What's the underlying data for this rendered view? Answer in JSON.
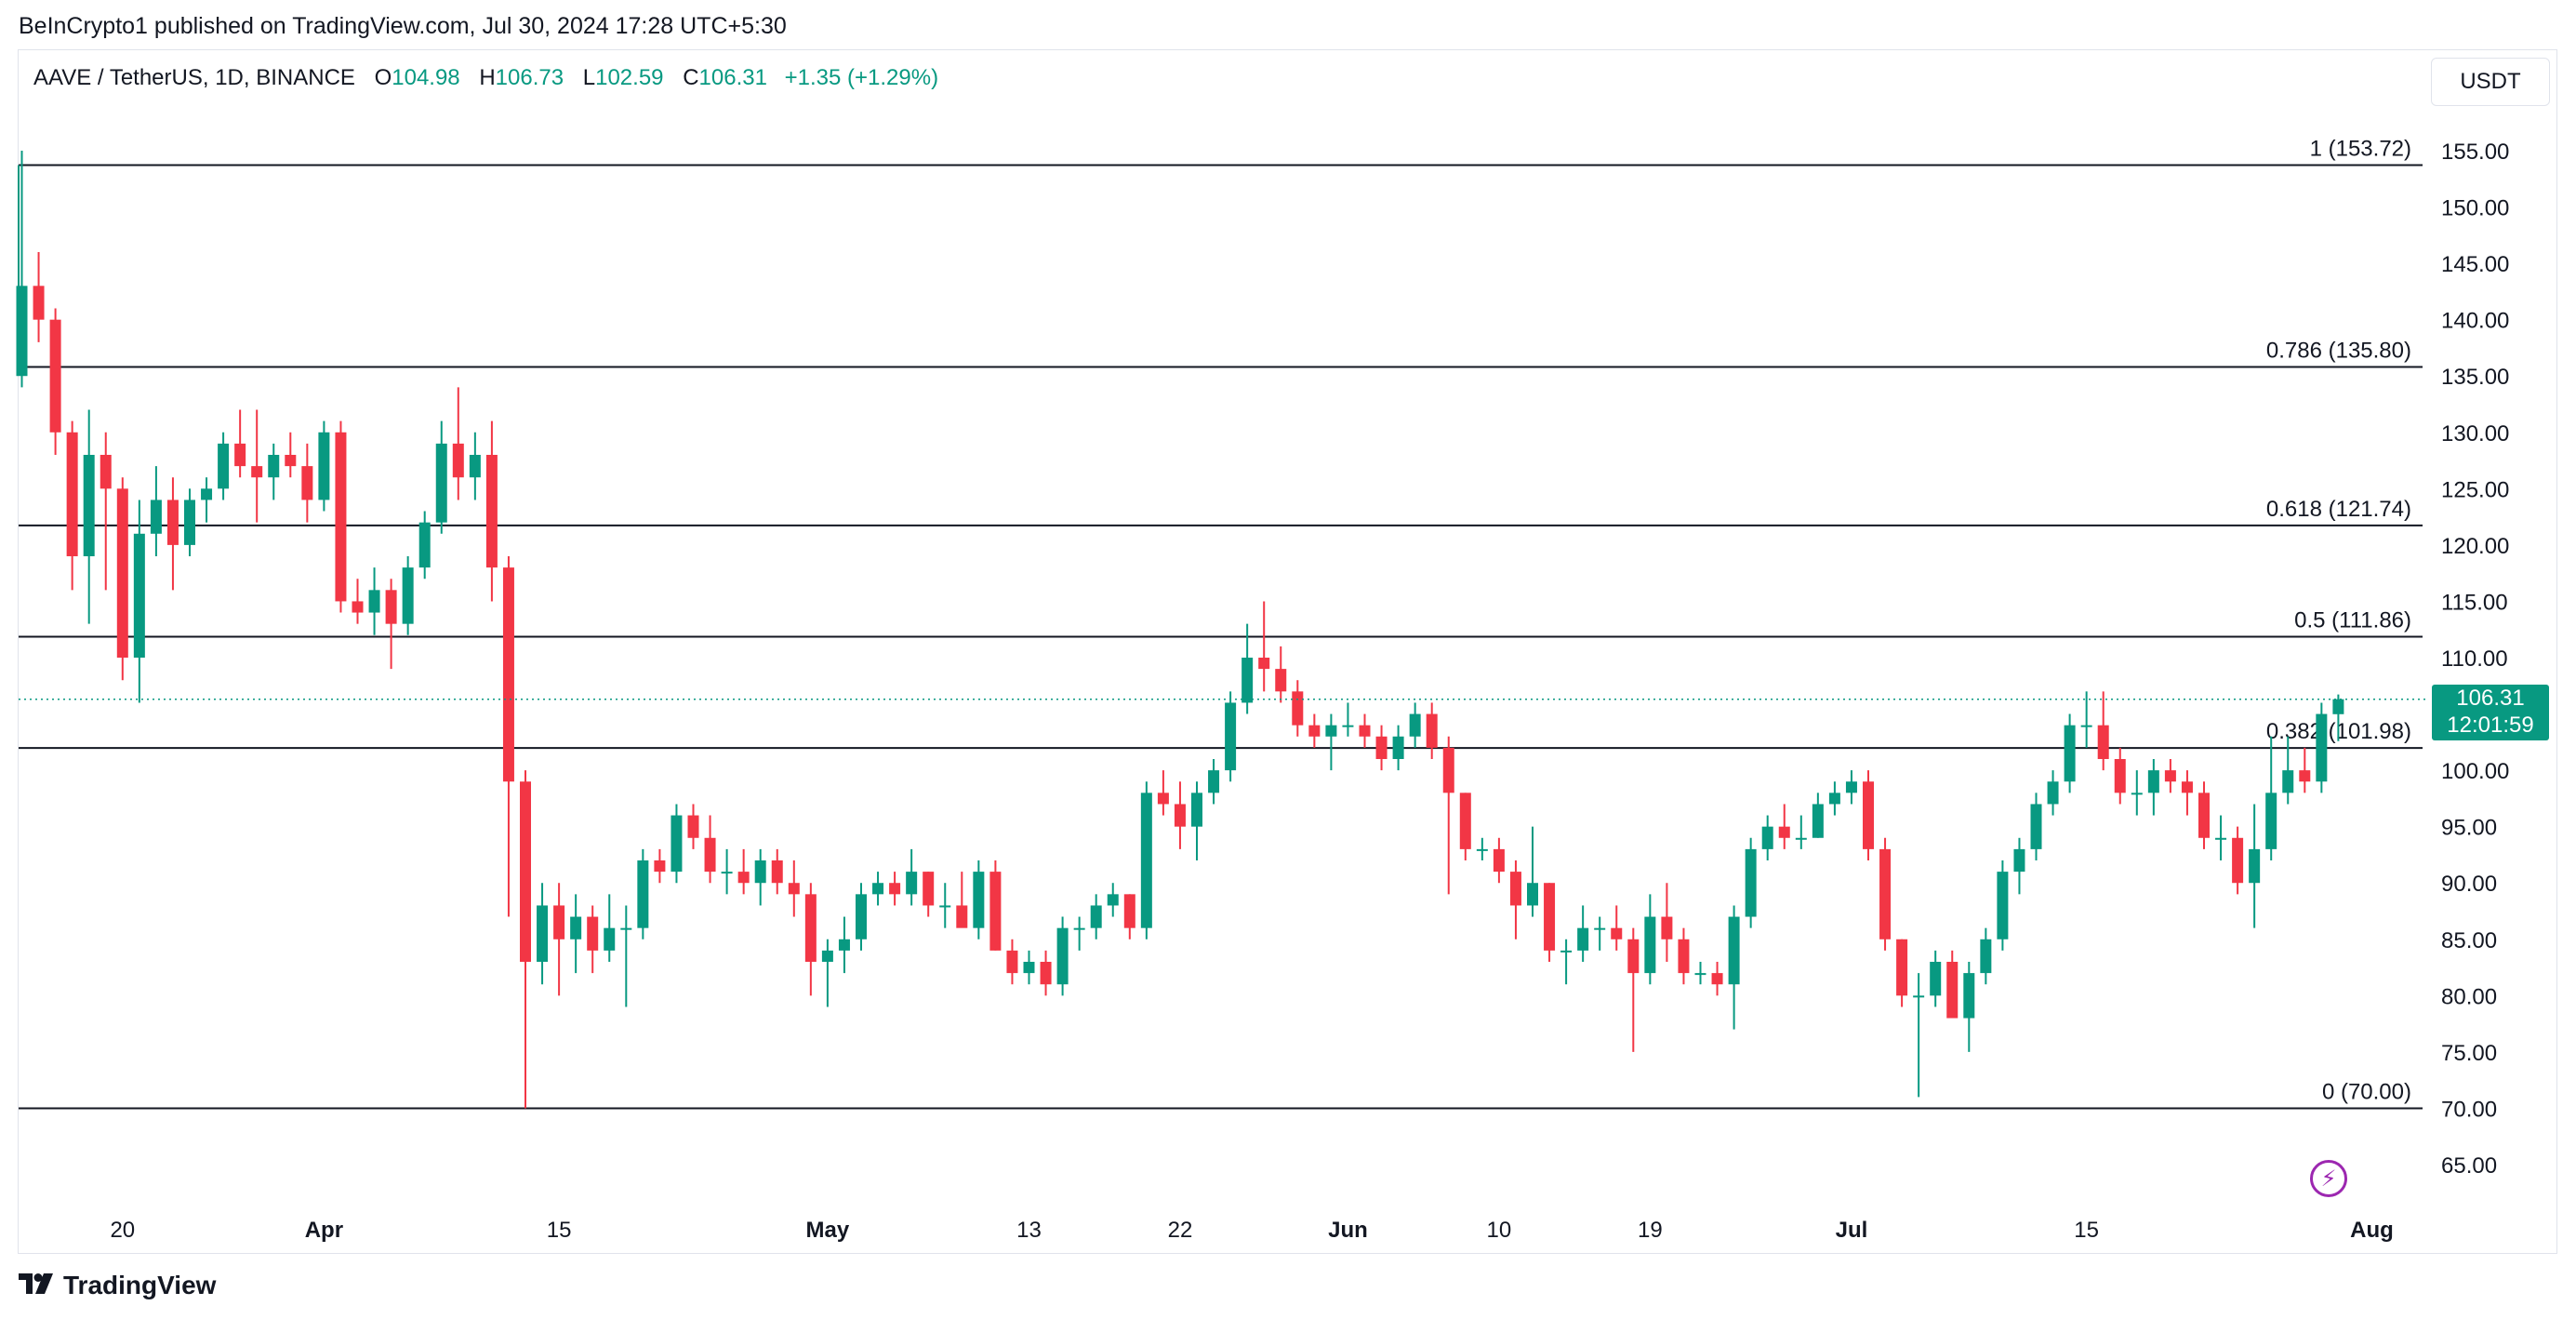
{
  "publisher_line": "BeInCrypto1 published on TradingView.com, Jul 30, 2024 17:28 UTC+5:30",
  "legend": {
    "symbol": "AAVE / TetherUS, 1D, BINANCE",
    "open_label": "O",
    "open": "104.98",
    "high_label": "H",
    "high": "106.73",
    "low_label": "L",
    "low": "102.59",
    "close_label": "C",
    "close": "106.31",
    "change": "+1.35 (+1.29%)"
  },
  "currency_button": "USDT",
  "price_tag": {
    "price": "106.31",
    "countdown": "12:01:59"
  },
  "brand": "TradingView",
  "colors": {
    "up": "#089981",
    "down": "#f23645",
    "fib_line": "#131722",
    "grid_text": "#131722",
    "bolt": "#9c27b0"
  },
  "icons": {
    "alert": "lightning-bolt-icon",
    "brand": "tradingview-logo-icon"
  },
  "chart_data": {
    "type": "candlestick",
    "timeframe": "1D",
    "ylim": [
      62,
      165
    ],
    "y_ticks": [
      65,
      70,
      75,
      80,
      85,
      90,
      95,
      100,
      105,
      110,
      115,
      120,
      125,
      130,
      135,
      140,
      145,
      150,
      155
    ],
    "y_tick_labels": [
      "65.00",
      "70.00",
      "75.00",
      "80.00",
      "85.00",
      "90.00",
      "95.00",
      "100.00",
      "105.00",
      "110.00",
      "115.00",
      "120.00",
      "125.00",
      "130.00",
      "135.00",
      "140.00",
      "145.00",
      "150.00",
      "155.00"
    ],
    "x_start": "2024-03-14",
    "x_end": "2024-08-01",
    "x_ticks": [
      {
        "date": "2024-03-20",
        "label": "20",
        "bold": false
      },
      {
        "date": "2024-04-01",
        "label": "Apr",
        "bold": true
      },
      {
        "date": "2024-04-15",
        "label": "15",
        "bold": false
      },
      {
        "date": "2024-05-01",
        "label": "May",
        "bold": true
      },
      {
        "date": "2024-05-13",
        "label": "13",
        "bold": false
      },
      {
        "date": "2024-05-22",
        "label": "22",
        "bold": false
      },
      {
        "date": "2024-06-01",
        "label": "Jun",
        "bold": true
      },
      {
        "date": "2024-06-10",
        "label": "10",
        "bold": false
      },
      {
        "date": "2024-06-19",
        "label": "19",
        "bold": false
      },
      {
        "date": "2024-07-01",
        "label": "Jul",
        "bold": true
      },
      {
        "date": "2024-07-15",
        "label": "15",
        "bold": false
      },
      {
        "date": "2024-08-01",
        "label": "Aug",
        "bold": true
      }
    ],
    "fib_levels": [
      {
        "ratio": "1",
        "value": 153.72,
        "label": "1 (153.72)"
      },
      {
        "ratio": "0.786",
        "value": 135.8,
        "label": "0.786 (135.80)"
      },
      {
        "ratio": "0.618",
        "value": 121.74,
        "label": "0.618 (121.74)"
      },
      {
        "ratio": "0.5",
        "value": 111.86,
        "label": "0.5 (111.86)"
      },
      {
        "ratio": "0.382",
        "value": 101.98,
        "label": "0.382 (101.98)"
      },
      {
        "ratio": "0",
        "value": 70.0,
        "label": "0 (70.00)"
      }
    ],
    "last_price": 106.31,
    "candles": [
      {
        "d": "2024-03-14",
        "o": 135,
        "h": 155,
        "l": 134,
        "c": 143
      },
      {
        "d": "2024-03-15",
        "o": 143,
        "h": 146,
        "l": 138,
        "c": 140
      },
      {
        "d": "2024-03-16",
        "o": 140,
        "h": 141,
        "l": 128,
        "c": 130
      },
      {
        "d": "2024-03-17",
        "o": 130,
        "h": 131,
        "l": 116,
        "c": 119
      },
      {
        "d": "2024-03-18",
        "o": 119,
        "h": 132,
        "l": 113,
        "c": 128
      },
      {
        "d": "2024-03-19",
        "o": 128,
        "h": 130,
        "l": 116,
        "c": 125
      },
      {
        "d": "2024-03-20",
        "o": 125,
        "h": 126,
        "l": 108,
        "c": 110
      },
      {
        "d": "2024-03-21",
        "o": 110,
        "h": 124,
        "l": 106,
        "c": 121
      },
      {
        "d": "2024-03-22",
        "o": 121,
        "h": 127,
        "l": 119,
        "c": 124
      },
      {
        "d": "2024-03-23",
        "o": 124,
        "h": 126,
        "l": 116,
        "c": 120
      },
      {
        "d": "2024-03-24",
        "o": 120,
        "h": 125,
        "l": 119,
        "c": 124
      },
      {
        "d": "2024-03-25",
        "o": 124,
        "h": 126,
        "l": 122,
        "c": 125
      },
      {
        "d": "2024-03-26",
        "o": 125,
        "h": 130,
        "l": 124,
        "c": 129
      },
      {
        "d": "2024-03-27",
        "o": 129,
        "h": 132,
        "l": 126,
        "c": 127
      },
      {
        "d": "2024-03-28",
        "o": 127,
        "h": 132,
        "l": 122,
        "c": 126
      },
      {
        "d": "2024-03-29",
        "o": 126,
        "h": 129,
        "l": 124,
        "c": 128
      },
      {
        "d": "2024-03-30",
        "o": 128,
        "h": 130,
        "l": 126,
        "c": 127
      },
      {
        "d": "2024-03-31",
        "o": 127,
        "h": 129,
        "l": 122,
        "c": 124
      },
      {
        "d": "2024-04-01",
        "o": 124,
        "h": 131,
        "l": 123,
        "c": 130
      },
      {
        "d": "2024-04-02",
        "o": 130,
        "h": 131,
        "l": 114,
        "c": 115
      },
      {
        "d": "2024-04-03",
        "o": 115,
        "h": 117,
        "l": 113,
        "c": 114
      },
      {
        "d": "2024-04-04",
        "o": 114,
        "h": 118,
        "l": 112,
        "c": 116
      },
      {
        "d": "2024-04-05",
        "o": 116,
        "h": 117,
        "l": 109,
        "c": 113
      },
      {
        "d": "2024-04-06",
        "o": 113,
        "h": 119,
        "l": 112,
        "c": 118
      },
      {
        "d": "2024-04-07",
        "o": 118,
        "h": 123,
        "l": 117,
        "c": 122
      },
      {
        "d": "2024-04-08",
        "o": 122,
        "h": 131,
        "l": 121,
        "c": 129
      },
      {
        "d": "2024-04-09",
        "o": 129,
        "h": 134,
        "l": 124,
        "c": 126
      },
      {
        "d": "2024-04-10",
        "o": 126,
        "h": 130,
        "l": 124,
        "c": 128
      },
      {
        "d": "2024-04-11",
        "o": 128,
        "h": 131,
        "l": 115,
        "c": 118
      },
      {
        "d": "2024-04-12",
        "o": 118,
        "h": 119,
        "l": 87,
        "c": 99
      },
      {
        "d": "2024-04-13",
        "o": 99,
        "h": 100,
        "l": 70,
        "c": 83
      },
      {
        "d": "2024-04-14",
        "o": 83,
        "h": 90,
        "l": 81,
        "c": 88
      },
      {
        "d": "2024-04-15",
        "o": 88,
        "h": 90,
        "l": 80,
        "c": 85
      },
      {
        "d": "2024-04-16",
        "o": 85,
        "h": 89,
        "l": 82,
        "c": 87
      },
      {
        "d": "2024-04-17",
        "o": 87,
        "h": 88,
        "l": 82,
        "c": 84
      },
      {
        "d": "2024-04-18",
        "o": 84,
        "h": 89,
        "l": 83,
        "c": 86
      },
      {
        "d": "2024-04-19",
        "o": 86,
        "h": 88,
        "l": 79,
        "c": 86
      },
      {
        "d": "2024-04-20",
        "o": 86,
        "h": 93,
        "l": 85,
        "c": 92
      },
      {
        "d": "2024-04-21",
        "o": 92,
        "h": 93,
        "l": 90,
        "c": 91
      },
      {
        "d": "2024-04-22",
        "o": 91,
        "h": 97,
        "l": 90,
        "c": 96
      },
      {
        "d": "2024-04-23",
        "o": 96,
        "h": 97,
        "l": 93,
        "c": 94
      },
      {
        "d": "2024-04-24",
        "o": 94,
        "h": 96,
        "l": 90,
        "c": 91
      },
      {
        "d": "2024-04-25",
        "o": 91,
        "h": 93,
        "l": 89,
        "c": 91
      },
      {
        "d": "2024-04-26",
        "o": 91,
        "h": 93,
        "l": 89,
        "c": 90
      },
      {
        "d": "2024-04-27",
        "o": 90,
        "h": 93,
        "l": 88,
        "c": 92
      },
      {
        "d": "2024-04-28",
        "o": 92,
        "h": 93,
        "l": 89,
        "c": 90
      },
      {
        "d": "2024-04-29",
        "o": 90,
        "h": 92,
        "l": 87,
        "c": 89
      },
      {
        "d": "2024-04-30",
        "o": 89,
        "h": 90,
        "l": 80,
        "c": 83
      },
      {
        "d": "2024-05-01",
        "o": 83,
        "h": 85,
        "l": 79,
        "c": 84
      },
      {
        "d": "2024-05-02",
        "o": 84,
        "h": 87,
        "l": 82,
        "c": 85
      },
      {
        "d": "2024-05-03",
        "o": 85,
        "h": 90,
        "l": 84,
        "c": 89
      },
      {
        "d": "2024-05-04",
        "o": 89,
        "h": 91,
        "l": 88,
        "c": 90
      },
      {
        "d": "2024-05-05",
        "o": 90,
        "h": 91,
        "l": 88,
        "c": 89
      },
      {
        "d": "2024-05-06",
        "o": 89,
        "h": 93,
        "l": 88,
        "c": 91
      },
      {
        "d": "2024-05-07",
        "o": 91,
        "h": 91,
        "l": 87,
        "c": 88
      },
      {
        "d": "2024-05-08",
        "o": 88,
        "h": 90,
        "l": 86,
        "c": 88
      },
      {
        "d": "2024-05-09",
        "o": 88,
        "h": 91,
        "l": 87,
        "c": 86
      },
      {
        "d": "2024-05-10",
        "o": 86,
        "h": 92,
        "l": 85,
        "c": 91
      },
      {
        "d": "2024-05-11",
        "o": 91,
        "h": 92,
        "l": 84,
        "c": 84
      },
      {
        "d": "2024-05-12",
        "o": 84,
        "h": 85,
        "l": 81,
        "c": 82
      },
      {
        "d": "2024-05-13",
        "o": 82,
        "h": 84,
        "l": 81,
        "c": 83
      },
      {
        "d": "2024-05-14",
        "o": 83,
        "h": 84,
        "l": 80,
        "c": 81
      },
      {
        "d": "2024-05-15",
        "o": 81,
        "h": 87,
        "l": 80,
        "c": 86
      },
      {
        "d": "2024-05-16",
        "o": 86,
        "h": 87,
        "l": 84,
        "c": 86
      },
      {
        "d": "2024-05-17",
        "o": 86,
        "h": 89,
        "l": 85,
        "c": 88
      },
      {
        "d": "2024-05-18",
        "o": 88,
        "h": 90,
        "l": 87,
        "c": 89
      },
      {
        "d": "2024-05-19",
        "o": 89,
        "h": 89,
        "l": 85,
        "c": 86
      },
      {
        "d": "2024-05-20",
        "o": 86,
        "h": 99,
        "l": 85,
        "c": 98
      },
      {
        "d": "2024-05-21",
        "o": 98,
        "h": 100,
        "l": 96,
        "c": 97
      },
      {
        "d": "2024-05-22",
        "o": 97,
        "h": 99,
        "l": 93,
        "c": 95
      },
      {
        "d": "2024-05-23",
        "o": 95,
        "h": 99,
        "l": 92,
        "c": 98
      },
      {
        "d": "2024-05-24",
        "o": 98,
        "h": 101,
        "l": 97,
        "c": 100
      },
      {
        "d": "2024-05-25",
        "o": 100,
        "h": 107,
        "l": 99,
        "c": 106
      },
      {
        "d": "2024-05-26",
        "o": 106,
        "h": 113,
        "l": 105,
        "c": 110
      },
      {
        "d": "2024-05-27",
        "o": 110,
        "h": 115,
        "l": 107,
        "c": 109
      },
      {
        "d": "2024-05-28",
        "o": 109,
        "h": 111,
        "l": 106,
        "c": 107
      },
      {
        "d": "2024-05-29",
        "o": 107,
        "h": 108,
        "l": 103,
        "c": 104
      },
      {
        "d": "2024-05-30",
        "o": 104,
        "h": 105,
        "l": 102,
        "c": 103
      },
      {
        "d": "2024-05-31",
        "o": 103,
        "h": 105,
        "l": 100,
        "c": 104
      },
      {
        "d": "2024-06-01",
        "o": 104,
        "h": 106,
        "l": 103,
        "c": 104
      },
      {
        "d": "2024-06-02",
        "o": 104,
        "h": 105,
        "l": 102,
        "c": 103
      },
      {
        "d": "2024-06-03",
        "o": 103,
        "h": 104,
        "l": 100,
        "c": 101
      },
      {
        "d": "2024-06-04",
        "o": 101,
        "h": 104,
        "l": 100,
        "c": 103
      },
      {
        "d": "2024-06-05",
        "o": 103,
        "h": 106,
        "l": 102,
        "c": 105
      },
      {
        "d": "2024-06-06",
        "o": 105,
        "h": 106,
        "l": 101,
        "c": 102
      },
      {
        "d": "2024-06-07",
        "o": 102,
        "h": 103,
        "l": 89,
        "c": 98
      },
      {
        "d": "2024-06-08",
        "o": 98,
        "h": 98,
        "l": 92,
        "c": 93
      },
      {
        "d": "2024-06-09",
        "o": 93,
        "h": 94,
        "l": 92,
        "c": 93
      },
      {
        "d": "2024-06-10",
        "o": 93,
        "h": 94,
        "l": 90,
        "c": 91
      },
      {
        "d": "2024-06-11",
        "o": 91,
        "h": 92,
        "l": 85,
        "c": 88
      },
      {
        "d": "2024-06-12",
        "o": 88,
        "h": 95,
        "l": 87,
        "c": 90
      },
      {
        "d": "2024-06-13",
        "o": 90,
        "h": 90,
        "l": 83,
        "c": 84
      },
      {
        "d": "2024-06-14",
        "o": 84,
        "h": 85,
        "l": 81,
        "c": 84
      },
      {
        "d": "2024-06-15",
        "o": 84,
        "h": 88,
        "l": 83,
        "c": 86
      },
      {
        "d": "2024-06-16",
        "o": 86,
        "h": 87,
        "l": 84,
        "c": 86
      },
      {
        "d": "2024-06-17",
        "o": 86,
        "h": 88,
        "l": 84,
        "c": 85
      },
      {
        "d": "2024-06-18",
        "o": 85,
        "h": 86,
        "l": 75,
        "c": 82
      },
      {
        "d": "2024-06-19",
        "o": 82,
        "h": 89,
        "l": 81,
        "c": 87
      },
      {
        "d": "2024-06-20",
        "o": 87,
        "h": 90,
        "l": 83,
        "c": 85
      },
      {
        "d": "2024-06-21",
        "o": 85,
        "h": 86,
        "l": 81,
        "c": 82
      },
      {
        "d": "2024-06-22",
        "o": 82,
        "h": 83,
        "l": 81,
        "c": 82
      },
      {
        "d": "2024-06-23",
        "o": 82,
        "h": 83,
        "l": 80,
        "c": 81
      },
      {
        "d": "2024-06-24",
        "o": 81,
        "h": 88,
        "l": 77,
        "c": 87
      },
      {
        "d": "2024-06-25",
        "o": 87,
        "h": 94,
        "l": 86,
        "c": 93
      },
      {
        "d": "2024-06-26",
        "o": 93,
        "h": 96,
        "l": 92,
        "c": 95
      },
      {
        "d": "2024-06-27",
        "o": 95,
        "h": 97,
        "l": 93,
        "c": 94
      },
      {
        "d": "2024-06-28",
        "o": 94,
        "h": 96,
        "l": 93,
        "c": 94
      },
      {
        "d": "2024-06-29",
        "o": 94,
        "h": 98,
        "l": 94,
        "c": 97
      },
      {
        "d": "2024-06-30",
        "o": 97,
        "h": 99,
        "l": 96,
        "c": 98
      },
      {
        "d": "2024-07-01",
        "o": 98,
        "h": 100,
        "l": 97,
        "c": 99
      },
      {
        "d": "2024-07-02",
        "o": 99,
        "h": 100,
        "l": 92,
        "c": 93
      },
      {
        "d": "2024-07-03",
        "o": 93,
        "h": 94,
        "l": 84,
        "c": 85
      },
      {
        "d": "2024-07-04",
        "o": 85,
        "h": 85,
        "l": 79,
        "c": 80
      },
      {
        "d": "2024-07-05",
        "o": 80,
        "h": 82,
        "l": 71,
        "c": 80
      },
      {
        "d": "2024-07-06",
        "o": 80,
        "h": 84,
        "l": 79,
        "c": 83
      },
      {
        "d": "2024-07-07",
        "o": 83,
        "h": 84,
        "l": 78,
        "c": 78
      },
      {
        "d": "2024-07-08",
        "o": 78,
        "h": 83,
        "l": 75,
        "c": 82
      },
      {
        "d": "2024-07-09",
        "o": 82,
        "h": 86,
        "l": 81,
        "c": 85
      },
      {
        "d": "2024-07-10",
        "o": 85,
        "h": 92,
        "l": 84,
        "c": 91
      },
      {
        "d": "2024-07-11",
        "o": 91,
        "h": 94,
        "l": 89,
        "c": 93
      },
      {
        "d": "2024-07-12",
        "o": 93,
        "h": 98,
        "l": 92,
        "c": 97
      },
      {
        "d": "2024-07-13",
        "o": 97,
        "h": 100,
        "l": 96,
        "c": 99
      },
      {
        "d": "2024-07-14",
        "o": 99,
        "h": 105,
        "l": 98,
        "c": 104
      },
      {
        "d": "2024-07-15",
        "o": 104,
        "h": 107,
        "l": 102,
        "c": 104
      },
      {
        "d": "2024-07-16",
        "o": 104,
        "h": 107,
        "l": 100,
        "c": 101
      },
      {
        "d": "2024-07-17",
        "o": 101,
        "h": 102,
        "l": 97,
        "c": 98
      },
      {
        "d": "2024-07-18",
        "o": 98,
        "h": 100,
        "l": 96,
        "c": 98
      },
      {
        "d": "2024-07-19",
        "o": 98,
        "h": 101,
        "l": 96,
        "c": 100
      },
      {
        "d": "2024-07-20",
        "o": 100,
        "h": 101,
        "l": 98,
        "c": 99
      },
      {
        "d": "2024-07-21",
        "o": 99,
        "h": 100,
        "l": 96,
        "c": 98
      },
      {
        "d": "2024-07-22",
        "o": 98,
        "h": 99,
        "l": 93,
        "c": 94
      },
      {
        "d": "2024-07-23",
        "o": 94,
        "h": 96,
        "l": 92,
        "c": 94
      },
      {
        "d": "2024-07-24",
        "o": 94,
        "h": 95,
        "l": 89,
        "c": 90
      },
      {
        "d": "2024-07-25",
        "o": 90,
        "h": 97,
        "l": 86,
        "c": 93
      },
      {
        "d": "2024-07-26",
        "o": 93,
        "h": 103,
        "l": 92,
        "c": 98
      },
      {
        "d": "2024-07-27",
        "o": 98,
        "h": 103,
        "l": 97,
        "c": 100
      },
      {
        "d": "2024-07-28",
        "o": 100,
        "h": 102,
        "l": 98,
        "c": 99
      },
      {
        "d": "2024-07-29",
        "o": 99,
        "h": 106,
        "l": 98,
        "c": 105
      },
      {
        "d": "2024-07-30",
        "o": 104.98,
        "h": 106.73,
        "l": 102.59,
        "c": 106.31
      }
    ]
  }
}
